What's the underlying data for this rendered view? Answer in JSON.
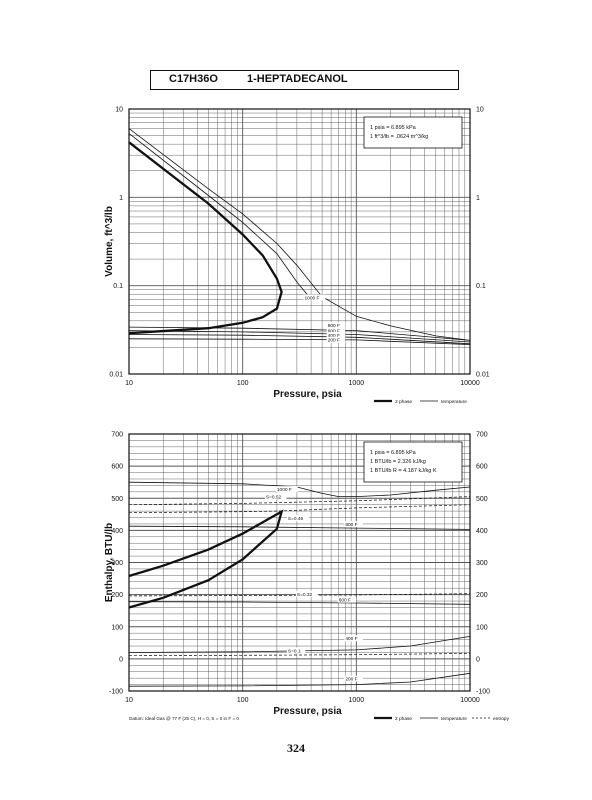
{
  "header": {
    "formula": "C17H36O",
    "compound": "1-HEPTADECANOL"
  },
  "page_number": "324",
  "chart_data": [
    {
      "type": "line",
      "xlabel": "Pressure,  psia",
      "ylabel": "Volume,  ft^3/lb",
      "x_scale": "log",
      "y_scale": "log",
      "xlim": [
        10,
        10000
      ],
      "ylim": [
        0.01,
        10
      ],
      "x_ticks": [
        "10",
        "100",
        "1000",
        "10000"
      ],
      "y_ticks_left": [
        "0.01",
        "0.1",
        "1",
        "10"
      ],
      "y_ticks_right": [
        "0.01",
        "0.1",
        "1",
        "10"
      ],
      "grid": true,
      "info_box": [
        "1 psia  =  6.895 kPa",
        "1 ft^3/lb  =  .0624 m^3/kg"
      ],
      "legend": [
        {
          "label": "2 phase",
          "style": "thick"
        },
        {
          "label": "temperature",
          "style": "thin"
        }
      ],
      "series": [
        {
          "kind": "dome",
          "x": [
            10,
            50,
            100,
            150,
            200,
            220,
            200,
            150,
            100,
            50,
            10
          ],
          "y": [
            4.2,
            0.85,
            0.38,
            0.22,
            0.12,
            0.085,
            0.055,
            0.044,
            0.038,
            0.033,
            0.029
          ]
        },
        {
          "name": "1000 F",
          "x": [
            10,
            50,
            100,
            200,
            300,
            500,
            1000,
            2000,
            5000,
            10000
          ],
          "y": [
            6.0,
            1.25,
            0.65,
            0.3,
            0.17,
            0.075,
            0.045,
            0.035,
            0.027,
            0.024
          ]
        },
        {
          "kind": "isotherm",
          "x": [
            10,
            50,
            100,
            200,
            300,
            400
          ],
          "y": [
            5.3,
            1.05,
            0.52,
            0.23,
            0.11,
            0.07
          ]
        },
        {
          "name": "800 F",
          "x": [
            10,
            100,
            1000,
            10000
          ],
          "y": [
            0.034,
            0.033,
            0.031,
            0.024
          ]
        },
        {
          "name": "600 F",
          "x": [
            10,
            100,
            1000,
            10000
          ],
          "y": [
            0.031,
            0.03,
            0.028,
            0.023
          ]
        },
        {
          "name": "400 F",
          "x": [
            10,
            100,
            1000,
            10000
          ],
          "y": [
            0.028,
            0.0275,
            0.026,
            0.022
          ]
        },
        {
          "name": "200 F",
          "x": [
            10,
            100,
            1000,
            10000
          ],
          "y": [
            0.025,
            0.0248,
            0.0243,
            0.0215
          ]
        }
      ],
      "curve_labels": [
        {
          "text": "1000 F",
          "x": 350,
          "y": 0.07
        },
        {
          "text": "800 F",
          "x": 560,
          "y": 0.034
        },
        {
          "text": "600 F",
          "x": 560,
          "y": 0.0295
        },
        {
          "text": "400 F",
          "x": 560,
          "y": 0.0262
        },
        {
          "text": "200 F",
          "x": 560,
          "y": 0.0232
        }
      ]
    },
    {
      "type": "line",
      "xlabel": "Pressure,  psia",
      "ylabel": "Enthalpy,  BTU/lb",
      "x_scale": "log",
      "y_scale": "linear",
      "xlim": [
        10,
        10000
      ],
      "ylim": [
        -100,
        700
      ],
      "x_ticks": [
        "10",
        "100",
        "1000",
        "10000"
      ],
      "y_ticks_left": [
        "-100",
        "0",
        "100",
        "200",
        "300",
        "400",
        "500",
        "600",
        "700"
      ],
      "y_ticks_right": [
        "-100",
        "0",
        "100",
        "200",
        "300",
        "400",
        "500",
        "600",
        "700"
      ],
      "grid": true,
      "info_box": [
        "1 psia  =  6.895 kPa",
        "1 BTU/lb  =  2.326 kJ/kg",
        "1 BTU/lb R  =  4.187 kJ/kg K"
      ],
      "legend": [
        {
          "label": "2 phase",
          "style": "thick"
        },
        {
          "label": "temperature",
          "style": "thin"
        },
        {
          "label": "entropy",
          "style": "dashed"
        }
      ],
      "datum_note": "Datum: Ideal Gas @ 77 F (25 C),  H = 0,  S = 0 in F = 0",
      "series": [
        {
          "kind": "dome",
          "x": [
            10,
            20,
            50,
            100,
            200,
            220,
            200,
            100,
            50,
            20,
            10
          ],
          "y": [
            258,
            290,
            340,
            390,
            450,
            458,
            405,
            310,
            245,
            190,
            160
          ]
        },
        {
          "name": "1000 F",
          "x": [
            10,
            100,
            300,
            500,
            700,
            1000,
            2000,
            5000,
            10000
          ],
          "y": [
            550,
            545,
            535,
            515,
            505,
            505,
            510,
            525,
            535
          ]
        },
        {
          "name": "800 F",
          "x": [
            10,
            100,
            1000,
            10000
          ],
          "y": [
            413,
            411,
            407,
            403
          ]
        },
        {
          "name": "600 F",
          "x": [
            10,
            100,
            1000,
            10000
          ],
          "y": [
            178,
            177,
            174,
            170
          ]
        },
        {
          "name": "400 F",
          "x": [
            10,
            100,
            1000,
            3000,
            10000
          ],
          "y": [
            20,
            22,
            28,
            40,
            70
          ]
        },
        {
          "name": "200 F",
          "x": [
            10,
            100,
            1000,
            3000,
            10000
          ],
          "y": [
            -85,
            -84,
            -80,
            -72,
            -45
          ]
        }
      ],
      "entropy_lines": [
        {
          "label": "S=0.52",
          "x": [
            10,
            100,
            1000,
            10000
          ],
          "y": [
            480,
            484,
            492,
            505
          ]
        },
        {
          "label": "S=0.46",
          "x": [
            10,
            100,
            200,
            1000,
            10000
          ],
          "y": [
            455,
            458,
            460,
            470,
            480
          ]
        },
        {
          "label": "S=0.32",
          "x": [
            10,
            100,
            1000,
            10000
          ],
          "y": [
            196,
            197,
            199,
            203
          ]
        },
        {
          "label": "S=0.1",
          "x": [
            10,
            100,
            1000,
            10000
          ],
          "y": [
            10,
            11,
            13,
            17
          ]
        }
      ],
      "curve_labels": [
        {
          "text": "1000 F",
          "x": 200,
          "y": 522
        },
        {
          "text": "S=0.52",
          "x": 160,
          "y": 500
        },
        {
          "text": "S=0.46",
          "x": 250,
          "y": 432
        },
        {
          "text": "800 F",
          "x": 800,
          "y": 413
        },
        {
          "text": "S=0.32",
          "x": 300,
          "y": 196
        },
        {
          "text": "600 F",
          "x": 700,
          "y": 178
        },
        {
          "text": "400 F",
          "x": 800,
          "y": 58
        },
        {
          "text": "S=0.1",
          "x": 250,
          "y": 20
        },
        {
          "text": "200 F",
          "x": 800,
          "y": -68
        }
      ]
    }
  ]
}
